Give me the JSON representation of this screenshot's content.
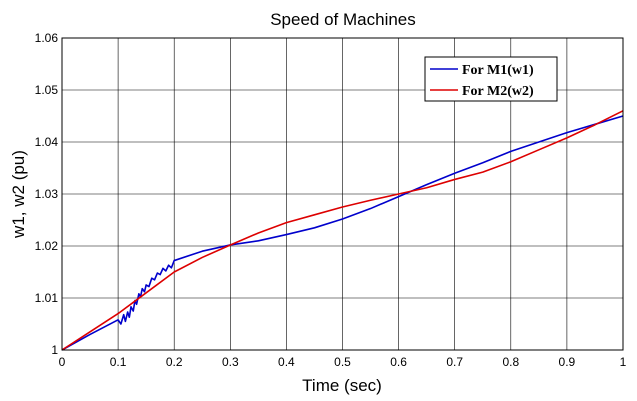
{
  "chart_data": {
    "type": "line",
    "title": "Speed of Machines",
    "xlabel": "Time (sec)",
    "ylabel": "w1, w2 (pu)",
    "xlim": [
      0,
      1
    ],
    "ylim": [
      1,
      1.06
    ],
    "xticks": [
      0,
      0.1,
      0.2,
      0.3,
      0.4,
      0.5,
      0.6,
      0.7,
      0.8,
      0.9,
      1
    ],
    "xtick_labels": [
      "0",
      "0.1",
      "0.2",
      "0.3",
      "0.4",
      "0.5",
      "0.6",
      "0.7",
      "0.8",
      "0.9",
      "1"
    ],
    "yticks": [
      1,
      1.01,
      1.02,
      1.03,
      1.04,
      1.05,
      1.06
    ],
    "ytick_labels": [
      "1",
      "1.01",
      "1.02",
      "1.03",
      "1.04",
      "1.05",
      "1.06"
    ],
    "grid": true,
    "legend_position": "top-right",
    "series": [
      {
        "name": "For M1(w1)",
        "color": "#0000cc",
        "x": [
          0,
          0.05,
          0.1,
          0.105,
          0.11,
          0.113,
          0.117,
          0.12,
          0.123,
          0.127,
          0.13,
          0.133,
          0.137,
          0.14,
          0.143,
          0.147,
          0.15,
          0.155,
          0.16,
          0.165,
          0.17,
          0.175,
          0.18,
          0.185,
          0.19,
          0.195,
          0.2,
          0.25,
          0.3,
          0.35,
          0.4,
          0.45,
          0.5,
          0.55,
          0.6,
          0.65,
          0.7,
          0.75,
          0.8,
          0.85,
          0.9,
          0.95,
          1
        ],
        "y": [
          1,
          1.003,
          1.0058,
          1.005,
          1.0068,
          1.0055,
          1.0073,
          1.0063,
          1.0083,
          1.0075,
          1.0095,
          1.0088,
          1.0108,
          1.0102,
          1.0118,
          1.0112,
          1.0125,
          1.0122,
          1.0138,
          1.0135,
          1.0148,
          1.0145,
          1.0157,
          1.0152,
          1.0163,
          1.0158,
          1.0172,
          1.019,
          1.0202,
          1.021,
          1.0222,
          1.0235,
          1.0252,
          1.0272,
          1.0295,
          1.0318,
          1.034,
          1.036,
          1.0382,
          1.04,
          1.0418,
          1.0434,
          1.045
        ]
      },
      {
        "name": "For M2(w2)",
        "color": "#dd0000",
        "x": [
          0,
          0.05,
          0.1,
          0.15,
          0.2,
          0.25,
          0.3,
          0.35,
          0.4,
          0.45,
          0.5,
          0.55,
          0.6,
          0.65,
          0.7,
          0.75,
          0.8,
          0.85,
          0.9,
          0.95,
          1
        ],
        "y": [
          1,
          1.0035,
          1.007,
          1.011,
          1.015,
          1.0178,
          1.0202,
          1.0225,
          1.0245,
          1.026,
          1.0275,
          1.0288,
          1.03,
          1.0312,
          1.0328,
          1.0342,
          1.0362,
          1.0385,
          1.0408,
          1.0433,
          1.046
        ]
      }
    ]
  }
}
